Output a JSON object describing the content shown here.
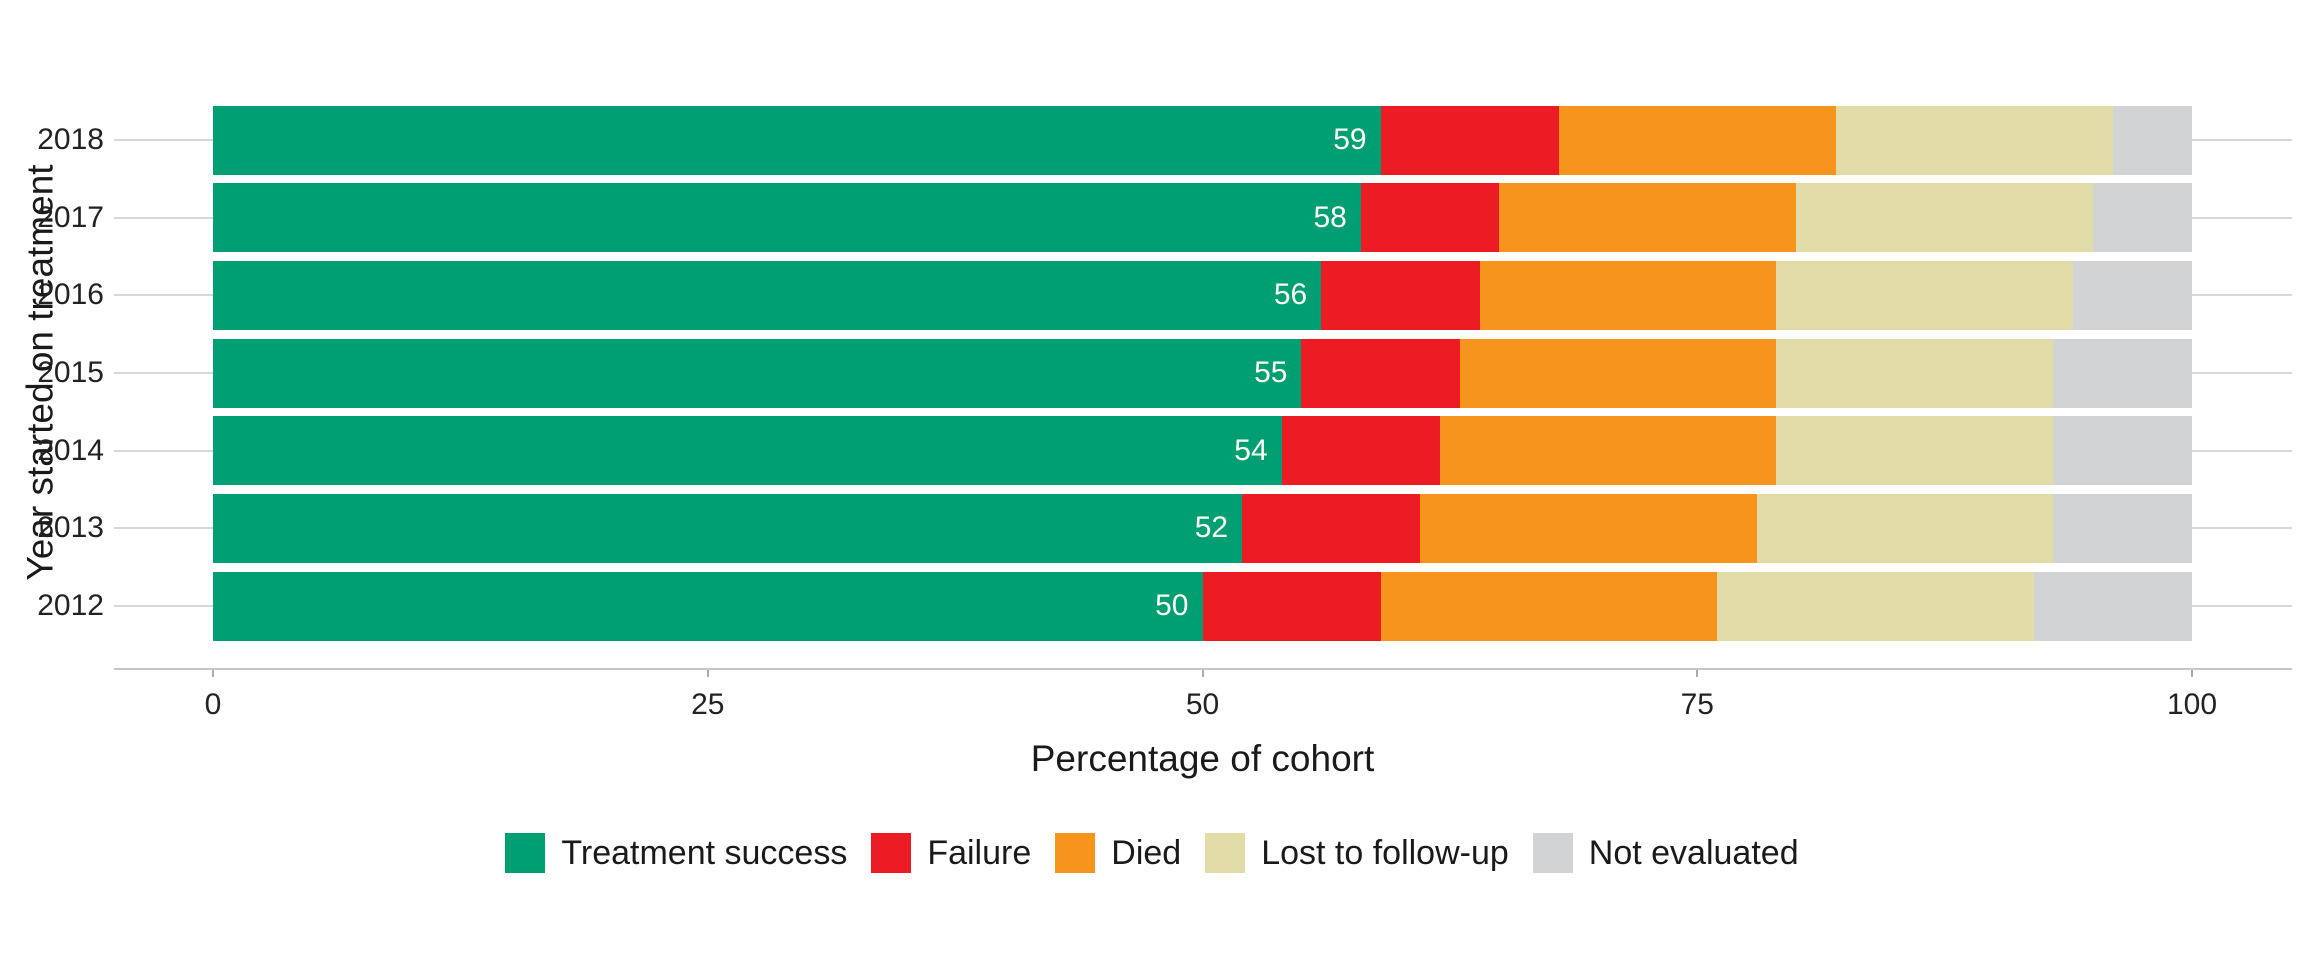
{
  "chart_data": {
    "type": "bar",
    "orientation": "horizontal",
    "stacked": true,
    "title": "",
    "xlabel": "Percentage of cohort",
    "ylabel": "Year started on treatment",
    "categories": [
      "2018",
      "2017",
      "2016",
      "2015",
      "2014",
      "2013",
      "2012"
    ],
    "series": [
      {
        "name": "Treatment success",
        "color": "#009E73",
        "values": [
          59,
          58,
          56,
          55,
          54,
          52,
          50
        ]
      },
      {
        "name": "Failure",
        "color": "#ED1C24",
        "values": [
          9,
          7,
          8,
          8,
          8,
          9,
          9
        ]
      },
      {
        "name": "Died",
        "color": "#F7941E",
        "values": [
          14,
          15,
          15,
          16,
          17,
          17,
          17
        ]
      },
      {
        "name": "Lost to follow-up",
        "color": "#E2DCA8",
        "values": [
          14,
          15,
          15,
          14,
          14,
          15,
          16
        ]
      },
      {
        "name": "Not evaluated",
        "color": "#D1D3D4",
        "values": [
          4,
          5,
          6,
          7,
          7,
          7,
          8
        ]
      }
    ],
    "bar_value_labels": [
      "59",
      "58",
      "56",
      "55",
      "54",
      "52",
      "50"
    ],
    "x_ticks": [
      "0",
      "25",
      "50",
      "75",
      "100"
    ],
    "xlim": [
      0,
      100
    ],
    "grid": "horizontal",
    "legend_position": "bottom",
    "background_color": "#FFFFFF",
    "gridline_color": "#D8D8D8",
    "axis_line_color": "#C6C6C6",
    "bar_label_text_color": "#FFFFF4",
    "axis_text_color": "#222222"
  }
}
